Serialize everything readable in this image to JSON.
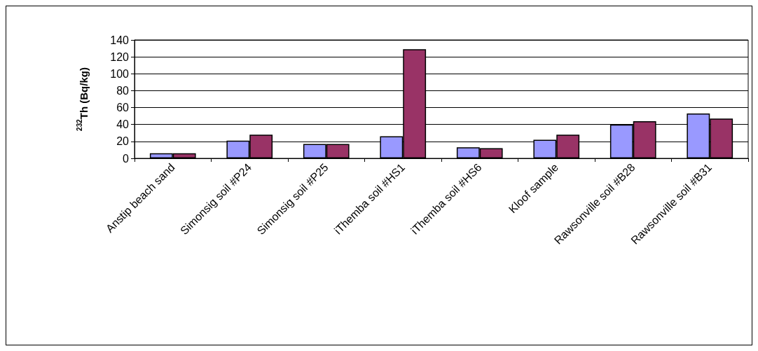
{
  "chart_data": {
    "type": "bar",
    "ylabel": "$^{232}$Th (Bq/kg)",
    "categories": [
      "Anstip beach sand",
      "Simonsig soil #P24",
      "Simonsig soil #P25",
      "iThemba soil #HS1",
      "iThemba soil #HS6",
      "Kloof sample",
      "Rawsonville soil #B28",
      "Rawsonville soil #B31"
    ],
    "series": [
      {
        "color": "#9999ff",
        "values": [
          6,
          21,
          17,
          26,
          13,
          22,
          40,
          53
        ]
      },
      {
        "color": "#993366",
        "values": [
          6,
          28,
          17,
          129,
          12,
          28,
          44,
          47
        ]
      }
    ],
    "ylim": [
      0,
      140
    ],
    "yticks": [
      0,
      20,
      40,
      60,
      80,
      100,
      120,
      140
    ],
    "grid": "y"
  }
}
